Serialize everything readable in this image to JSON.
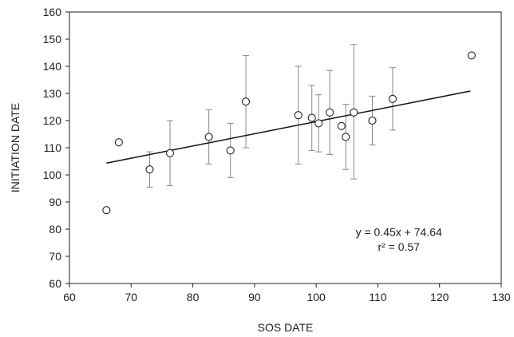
{
  "chart_data": {
    "type": "scatter",
    "xlabel": "SOS DATE",
    "ylabel": "INITIATION DATE",
    "xlim": [
      60,
      130
    ],
    "ylim": [
      60,
      160
    ],
    "xticks": [
      60,
      70,
      80,
      90,
      100,
      110,
      120,
      130
    ],
    "yticks": [
      60,
      70,
      80,
      90,
      100,
      110,
      120,
      130,
      140,
      150,
      160
    ],
    "grid": false,
    "points": [
      {
        "x": 66.0,
        "y": 87,
        "err_low": null,
        "err_high": null
      },
      {
        "x": 68.0,
        "y": 112,
        "err_low": null,
        "err_high": null
      },
      {
        "x": 73.0,
        "y": 102,
        "err_low": 95.5,
        "err_high": 108.5
      },
      {
        "x": 76.3,
        "y": 108,
        "err_low": 96,
        "err_high": 120
      },
      {
        "x": 82.6,
        "y": 114,
        "err_low": 104,
        "err_high": 124
      },
      {
        "x": 86.1,
        "y": 109,
        "err_low": 99,
        "err_high": 119
      },
      {
        "x": 88.6,
        "y": 127,
        "err_low": 110,
        "err_high": 144
      },
      {
        "x": 97.1,
        "y": 122,
        "err_low": 104,
        "err_high": 140
      },
      {
        "x": 99.3,
        "y": 121,
        "err_low": 109,
        "err_high": 133
      },
      {
        "x": 100.4,
        "y": 119,
        "err_low": 108.5,
        "err_high": 129.5
      },
      {
        "x": 102.2,
        "y": 123,
        "err_low": 107.5,
        "err_high": 138.5
      },
      {
        "x": 104.1,
        "y": 118,
        "err_low": null,
        "err_high": null
      },
      {
        "x": 104.8,
        "y": 114,
        "err_low": 102,
        "err_high": 126
      },
      {
        "x": 106.1,
        "y": 123,
        "err_low": 98.5,
        "err_high": 148
      },
      {
        "x": 109.1,
        "y": 120,
        "err_low": 111,
        "err_high": 129
      },
      {
        "x": 112.4,
        "y": 128,
        "err_low": 116.5,
        "err_high": 139.5
      }
    ],
    "outlier_point": {
      "x": 125.2,
      "y": 144
    },
    "trendline": {
      "slope": 0.45,
      "intercept": 74.64,
      "x_start": 66,
      "x_end": 125
    },
    "annotations": {
      "equation": "y = 0.45x + 74.64",
      "r_squared": "r² = 0.57"
    },
    "colors": {
      "axis": "#222222",
      "marker_stroke": "#222222",
      "marker_fill": "#ffffff",
      "error_bar": "#888888",
      "trendline": "#111111"
    }
  }
}
